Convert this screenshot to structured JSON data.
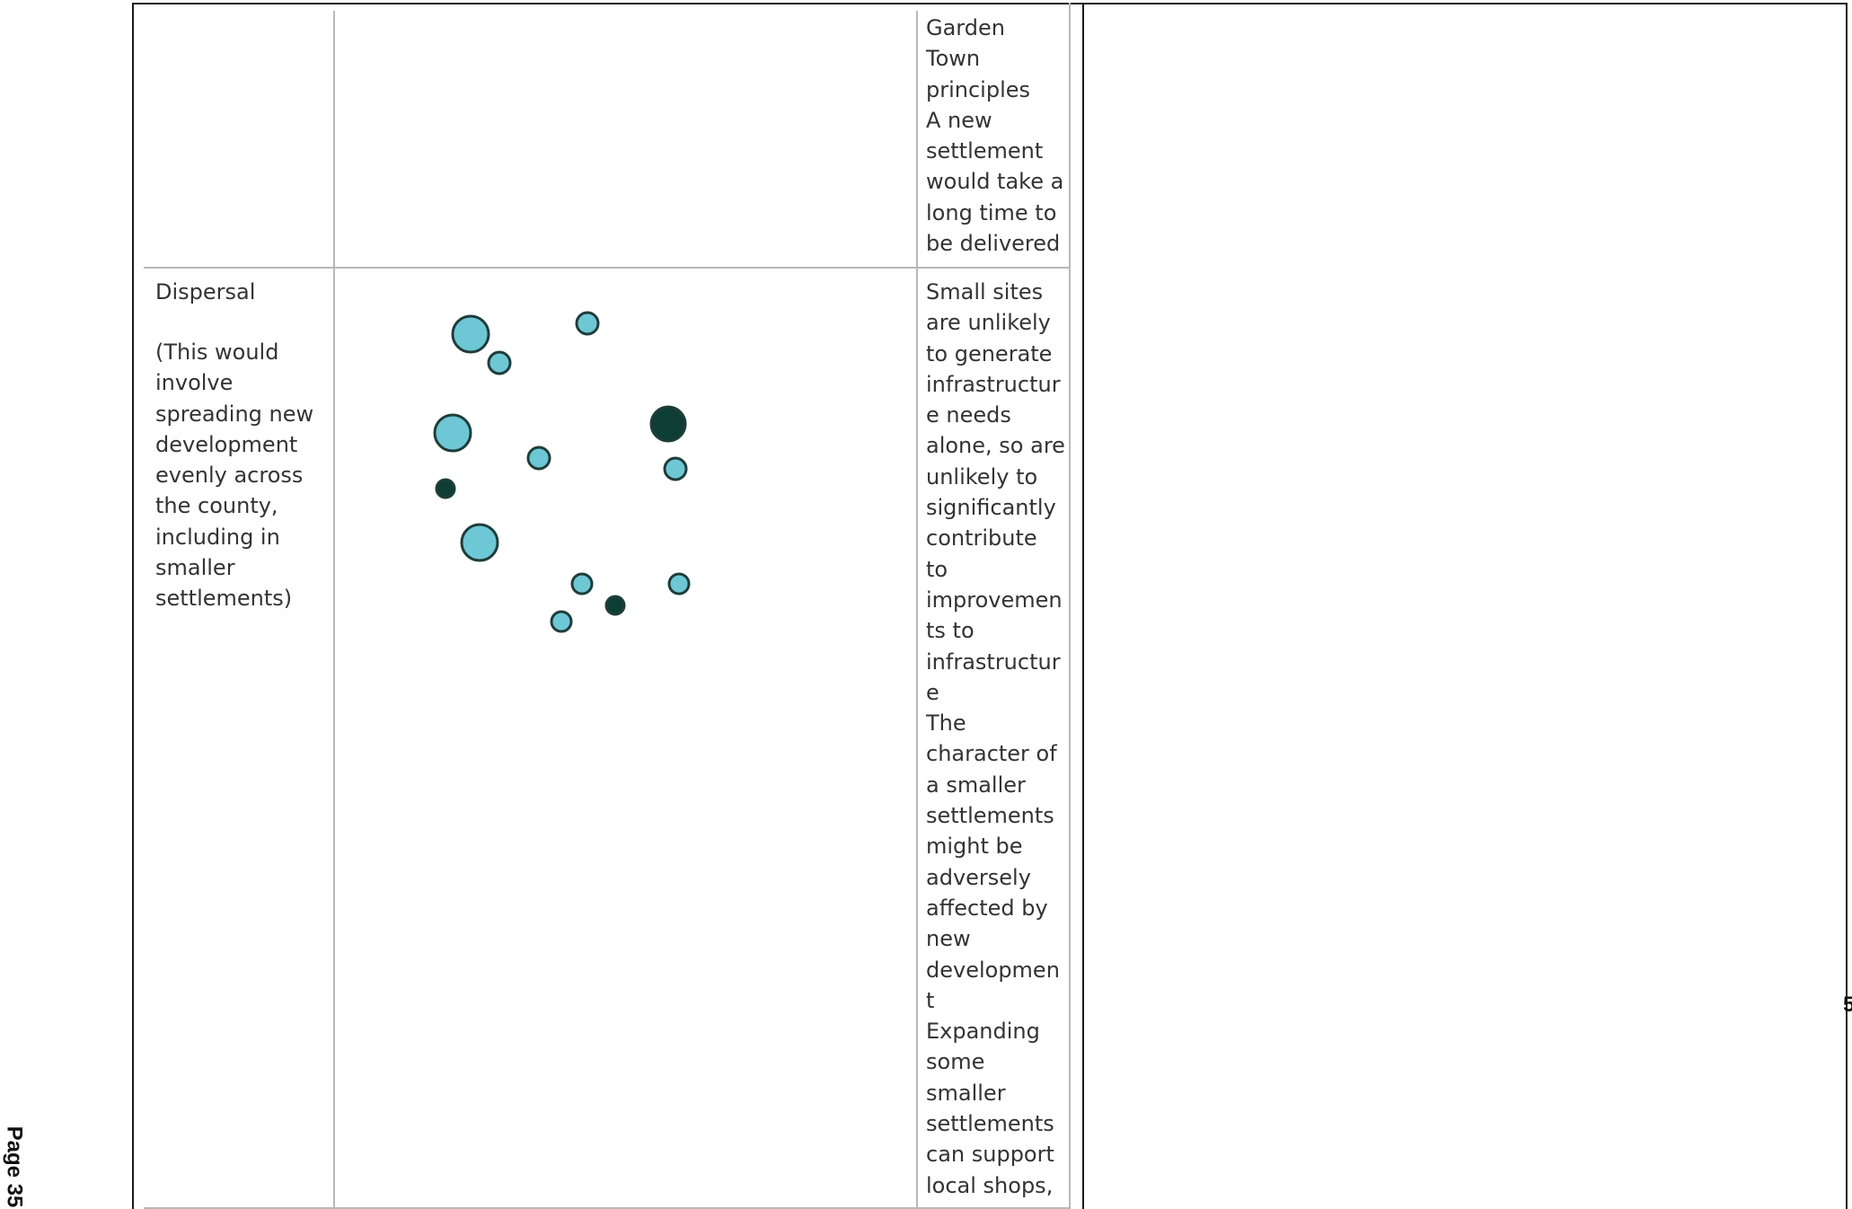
{
  "document": {
    "page_label": "Page 35",
    "edge_glyph": "5",
    "rows": [
      {
        "name": "",
        "description": "",
        "impacts_lines": [
          "Garden",
          "Town",
          "principles",
          "A new",
          "settlement",
          "would take a",
          "long time to",
          "be delivered"
        ]
      },
      {
        "name": "Dispersal",
        "description_lines": [
          "(This would",
          "involve",
          "spreading new",
          "development",
          "evenly across",
          "the county,",
          "including in",
          "smaller",
          "settlements)"
        ],
        "impacts_lines": [
          "Small sites",
          "are unlikely",
          "to generate",
          "infrastructur",
          "e needs",
          "alone, so are",
          "unlikely to",
          "significantly",
          "contribute",
          "to",
          "improvemen",
          "ts to",
          "infrastructur",
          "e",
          "The",
          "character of",
          "a smaller",
          "settlements",
          "might be",
          "adversely",
          "affected by",
          "new",
          "developmen",
          "t",
          "Expanding",
          "some",
          "smaller",
          "settlements",
          "can support",
          "local shops,"
        ]
      }
    ]
  },
  "colors": {
    "settlement_light": "#6ec7d4",
    "settlement_dark": "#0d3d33",
    "outline": "#1f3d3a",
    "frame": "#1a1a1a",
    "grid": "#b8b8b8",
    "text": "#333333"
  },
  "dispersal_diagram": {
    "settlements": [
      {
        "tone": "light",
        "size": "large"
      },
      {
        "tone": "light",
        "size": "small"
      },
      {
        "tone": "light",
        "size": "small"
      },
      {
        "tone": "light",
        "size": "large"
      },
      {
        "tone": "dark",
        "size": "large"
      },
      {
        "tone": "light",
        "size": "small"
      },
      {
        "tone": "light",
        "size": "small"
      },
      {
        "tone": "dark",
        "size": "small"
      },
      {
        "tone": "light",
        "size": "large"
      },
      {
        "tone": "light",
        "size": "small"
      },
      {
        "tone": "light",
        "size": "small"
      },
      {
        "tone": "dark",
        "size": "small"
      },
      {
        "tone": "light",
        "size": "small"
      }
    ]
  }
}
